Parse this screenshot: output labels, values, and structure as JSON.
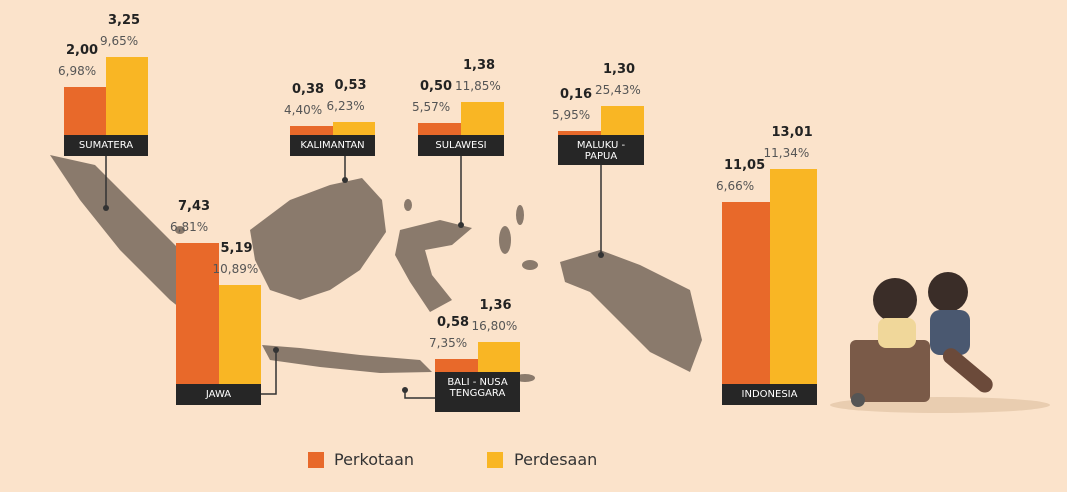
{
  "chart_data": {
    "type": "bar",
    "categories": [
      "SUMATERA",
      "JAWA",
      "KALIMANTAN",
      "SULAWESI",
      "BALI - NUSA\nTENGGARA",
      "MALUKU -\nPAPUA",
      "INDONESIA"
    ],
    "series": [
      {
        "name": "Perkotaan",
        "color": "#e8692a",
        "values": [
          2.0,
          7.43,
          0.38,
          0.5,
          0.58,
          0.16,
          11.05
        ],
        "value_labels": [
          "2,00",
          "7,43",
          "0,38",
          "0,50",
          "0,58",
          "0,16",
          "11,05"
        ],
        "percent": [
          6.98,
          6.81,
          4.4,
          5.57,
          7.35,
          5.95,
          6.66
        ],
        "percent_labels": [
          "6,98%",
          "6,81%",
          "4,40%",
          "5,57%",
          "7,35%",
          "5,95%",
          "6,66%"
        ]
      },
      {
        "name": "Perdesaan",
        "color": "#f9b624",
        "values": [
          3.25,
          5.19,
          0.53,
          1.38,
          1.36,
          1.3,
          13.01
        ],
        "value_labels": [
          "3,25",
          "5,19",
          "0,53",
          "1,38",
          "1,36",
          "1,30",
          "13,01"
        ],
        "percent": [
          9.65,
          10.89,
          6.23,
          11.85,
          16.8,
          25.43,
          11.34
        ],
        "percent_labels": [
          "9,65%",
          "10,89%",
          "6,23%",
          "11,85%",
          "16,80%",
          "25,43%",
          "11,34%"
        ]
      }
    ]
  }
}
